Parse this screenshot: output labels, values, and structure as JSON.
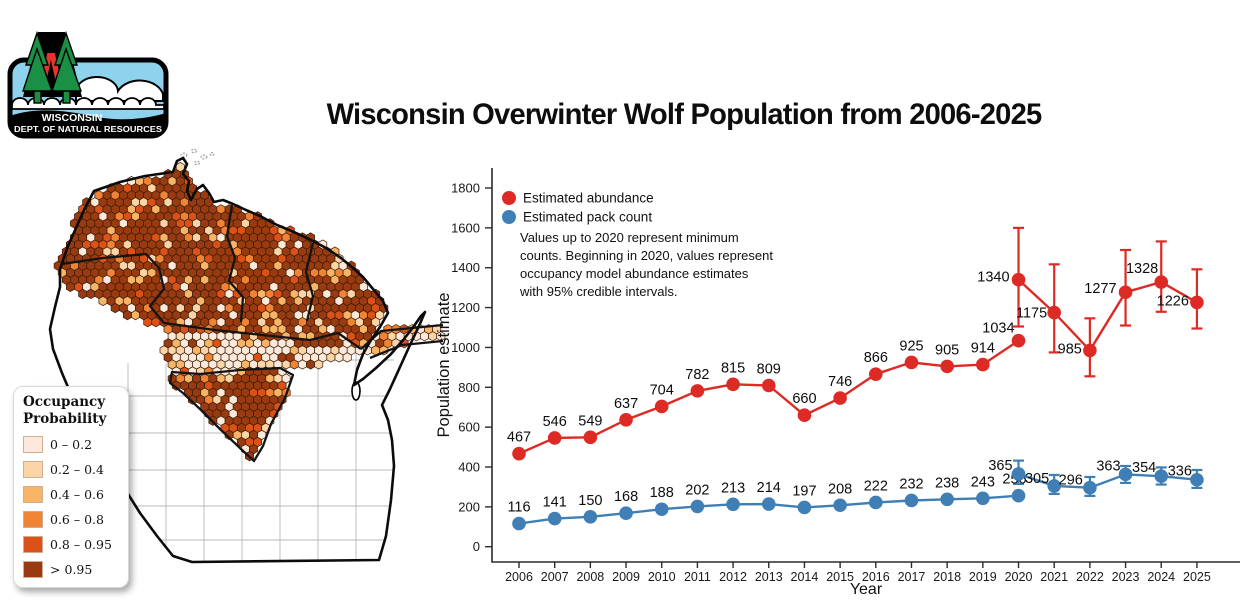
{
  "logo": {
    "org_line1": "WISCONSIN",
    "org_line2": "DEPT. OF NATURAL RESOURCES"
  },
  "title": "Wisconsin Overwinter Wolf Population from 2006-2025",
  "map_legend": {
    "title_line1": "Occupancy",
    "title_line2": "Probability",
    "items": [
      {
        "label": "0 – 0.2",
        "color": "#FDE9DB"
      },
      {
        "label": "0.2 – 0.4",
        "color": "#FBD5A8"
      },
      {
        "label": "0.4 – 0.6",
        "color": "#F8B467"
      },
      {
        "label": "0.6 – 0.8",
        "color": "#F08434"
      },
      {
        "label": "0.8 – 0.95",
        "color": "#DC5118"
      },
      {
        "label": "> 0.95",
        "color": "#9A3A10"
      }
    ]
  },
  "chart_data": {
    "type": "line",
    "xlabel": "Year",
    "ylabel": "Population estimate",
    "ylim": [
      0,
      1800
    ],
    "yticks": [
      0,
      200,
      400,
      600,
      800,
      1000,
      1200,
      1400,
      1600,
      1800
    ],
    "years": [
      2006,
      2007,
      2008,
      2009,
      2010,
      2011,
      2012,
      2013,
      2014,
      2015,
      2016,
      2017,
      2018,
      2019,
      2020,
      2021,
      2022,
      2023,
      2024,
      2025
    ],
    "legend": [
      {
        "label": "Estimated abundance",
        "color": "#DD2A24"
      },
      {
        "label": "Estimated pack count",
        "color": "#3F7FB5"
      }
    ],
    "note_lines": [
      "Values up to 2020 represent minimum",
      "counts. Beginning in 2020, values represent",
      "occupancy model abundance estimates",
      "with 95% credible intervals."
    ],
    "series": [
      {
        "name": "Estimated abundance",
        "color": "#DD2A24",
        "minimum_counts": {
          "years": [
            2006,
            2007,
            2008,
            2009,
            2010,
            2011,
            2012,
            2013,
            2014,
            2015,
            2016,
            2017,
            2018,
            2019,
            2020
          ],
          "values": [
            467,
            546,
            549,
            637,
            704,
            782,
            815,
            809,
            660,
            746,
            866,
            925,
            905,
            914,
            1034
          ]
        },
        "estimates": {
          "years": [
            2020,
            2021,
            2022,
            2023,
            2024,
            2025
          ],
          "values": [
            1340,
            1175,
            985,
            1277,
            1328,
            1226
          ],
          "ci_low": [
            1105,
            975,
            855,
            1110,
            1179,
            1095
          ],
          "ci_high": [
            1600,
            1417,
            1146,
            1489,
            1532,
            1392
          ]
        }
      },
      {
        "name": "Estimated pack count",
        "color": "#3F7FB5",
        "minimum_counts": {
          "years": [
            2006,
            2007,
            2008,
            2009,
            2010,
            2011,
            2012,
            2013,
            2014,
            2015,
            2016,
            2017,
            2018,
            2019,
            2020
          ],
          "values": [
            116,
            141,
            150,
            168,
            188,
            202,
            213,
            214,
            197,
            208,
            222,
            232,
            238,
            243,
            256
          ]
        },
        "estimates": {
          "years": [
            2020,
            2021,
            2022,
            2023,
            2024,
            2025
          ],
          "values": [
            365,
            305,
            296,
            363,
            354,
            336
          ],
          "ci_low": [
            315,
            265,
            255,
            320,
            312,
            295
          ],
          "ci_high": [
            432,
            360,
            350,
            405,
            398,
            385
          ]
        }
      }
    ]
  }
}
